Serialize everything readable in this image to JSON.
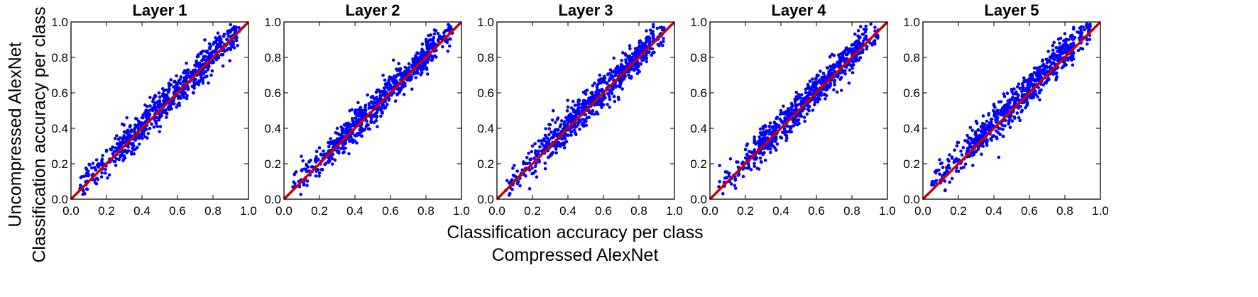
{
  "figure": {
    "ylabel_line1": "Uncompressed AlexNet",
    "ylabel_line2": "Classification accuracy per class",
    "xlabel_line1": "Classification accuracy per class",
    "xlabel_line2": "Compressed AlexNet"
  },
  "chart_data": [
    {
      "type": "scatter",
      "title": "Layer 1",
      "xlim": [
        0.0,
        1.0
      ],
      "ylim": [
        0.0,
        1.0
      ],
      "xticks": [
        "0.0",
        "0.2",
        "0.4",
        "0.6",
        "0.8",
        "1.0"
      ],
      "yticks": [
        "0.0",
        "0.2",
        "0.4",
        "0.6",
        "0.8",
        "1.0"
      ],
      "grid": false,
      "series": [
        {
          "kind": "points",
          "color": "#0000ff",
          "x": [
            0.05,
            0.1,
            0.12,
            0.15,
            0.18,
            0.2,
            0.22,
            0.25,
            0.28,
            0.3,
            0.32,
            0.34,
            0.36,
            0.38,
            0.4,
            0.42,
            0.44,
            0.46,
            0.48,
            0.5,
            0.52,
            0.54,
            0.56,
            0.58,
            0.6,
            0.62,
            0.64,
            0.66,
            0.68,
            0.7,
            0.72,
            0.74,
            0.76,
            0.78,
            0.8,
            0.82,
            0.85,
            0.88,
            0.9,
            0.93
          ],
          "y": [
            0.06,
            0.14,
            0.11,
            0.19,
            0.2,
            0.27,
            0.21,
            0.29,
            0.3,
            0.38,
            0.31,
            0.39,
            0.4,
            0.35,
            0.46,
            0.4,
            0.47,
            0.5,
            0.44,
            0.55,
            0.49,
            0.58,
            0.52,
            0.6,
            0.62,
            0.57,
            0.68,
            0.62,
            0.7,
            0.71,
            0.66,
            0.76,
            0.72,
            0.82,
            0.78,
            0.86,
            0.84,
            0.9,
            0.88,
            0.97
          ]
        },
        {
          "kind": "line",
          "color": "#cc0000",
          "x": [
            0.0,
            1.0
          ],
          "y": [
            0.0,
            1.0
          ]
        }
      ]
    },
    {
      "type": "scatter",
      "title": "Layer 2",
      "xlim": [
        0.0,
        1.0
      ],
      "ylim": [
        0.0,
        1.0
      ],
      "xticks": [
        "0.0",
        "0.2",
        "0.4",
        "0.6",
        "0.8",
        "1.0"
      ],
      "yticks": [
        "0.0",
        "0.2",
        "0.4",
        "0.6",
        "0.8",
        "1.0"
      ],
      "grid": false,
      "series": [
        {
          "kind": "points",
          "color": "#0000ff",
          "x": [
            0.05,
            0.1,
            0.12,
            0.15,
            0.18,
            0.2,
            0.22,
            0.25,
            0.28,
            0.3,
            0.32,
            0.34,
            0.36,
            0.38,
            0.4,
            0.42,
            0.44,
            0.46,
            0.48,
            0.5,
            0.52,
            0.54,
            0.56,
            0.58,
            0.6,
            0.62,
            0.64,
            0.66,
            0.68,
            0.7,
            0.72,
            0.74,
            0.76,
            0.78,
            0.8,
            0.82,
            0.85,
            0.88,
            0.9,
            0.93
          ],
          "y": [
            0.07,
            0.16,
            0.12,
            0.22,
            0.21,
            0.29,
            0.23,
            0.32,
            0.31,
            0.4,
            0.34,
            0.42,
            0.41,
            0.38,
            0.49,
            0.43,
            0.5,
            0.53,
            0.47,
            0.58,
            0.52,
            0.61,
            0.55,
            0.63,
            0.64,
            0.6,
            0.7,
            0.65,
            0.72,
            0.73,
            0.69,
            0.78,
            0.75,
            0.83,
            0.8,
            0.87,
            0.85,
            0.91,
            0.9,
            0.97
          ]
        },
        {
          "kind": "line",
          "color": "#cc0000",
          "x": [
            0.0,
            1.0
          ],
          "y": [
            0.0,
            1.0
          ]
        }
      ]
    },
    {
      "type": "scatter",
      "title": "Layer 3",
      "xlim": [
        0.0,
        1.0
      ],
      "ylim": [
        0.0,
        1.0
      ],
      "xticks": [
        "0.0",
        "0.2",
        "0.4",
        "0.6",
        "0.8",
        "1.0"
      ],
      "yticks": [
        "0.0",
        "0.2",
        "0.4",
        "0.6",
        "0.8",
        "1.0"
      ],
      "grid": false,
      "series": [
        {
          "kind": "points",
          "color": "#0000ff",
          "x": [
            0.05,
            0.1,
            0.12,
            0.15,
            0.18,
            0.2,
            0.22,
            0.25,
            0.28,
            0.3,
            0.32,
            0.34,
            0.36,
            0.38,
            0.4,
            0.42,
            0.44,
            0.46,
            0.48,
            0.5,
            0.52,
            0.54,
            0.56,
            0.58,
            0.6,
            0.62,
            0.64,
            0.66,
            0.68,
            0.7,
            0.72,
            0.74,
            0.76,
            0.78,
            0.8,
            0.82,
            0.85,
            0.88,
            0.9,
            0.93
          ],
          "y": [
            0.05,
            0.13,
            0.1,
            0.2,
            0.17,
            0.3,
            0.2,
            0.33,
            0.3,
            0.42,
            0.35,
            0.45,
            0.42,
            0.4,
            0.52,
            0.45,
            0.53,
            0.56,
            0.5,
            0.61,
            0.54,
            0.64,
            0.57,
            0.66,
            0.67,
            0.62,
            0.73,
            0.67,
            0.75,
            0.76,
            0.71,
            0.8,
            0.77,
            0.85,
            0.82,
            0.88,
            0.86,
            0.92,
            0.9,
            0.97
          ]
        },
        {
          "kind": "line",
          "color": "#cc0000",
          "x": [
            0.0,
            1.0
          ],
          "y": [
            0.0,
            1.0
          ]
        }
      ]
    },
    {
      "type": "scatter",
      "title": "Layer 4",
      "xlim": [
        0.0,
        1.0
      ],
      "ylim": [
        0.0,
        1.0
      ],
      "xticks": [
        "0.0",
        "0.2",
        "0.4",
        "0.6",
        "0.8",
        "1.0"
      ],
      "yticks": [
        "0.0",
        "0.2",
        "0.4",
        "0.6",
        "0.8",
        "1.0"
      ],
      "grid": false,
      "series": [
        {
          "kind": "points",
          "color": "#0000ff",
          "x": [
            0.05,
            0.1,
            0.12,
            0.15,
            0.18,
            0.2,
            0.22,
            0.25,
            0.28,
            0.3,
            0.32,
            0.34,
            0.36,
            0.38,
            0.4,
            0.42,
            0.44,
            0.46,
            0.48,
            0.5,
            0.52,
            0.54,
            0.56,
            0.58,
            0.6,
            0.62,
            0.64,
            0.66,
            0.68,
            0.7,
            0.72,
            0.74,
            0.76,
            0.78,
            0.8,
            0.82,
            0.85,
            0.88,
            0.9,
            0.93
          ],
          "y": [
            0.07,
            0.15,
            0.12,
            0.21,
            0.2,
            0.28,
            0.22,
            0.32,
            0.3,
            0.41,
            0.33,
            0.43,
            0.41,
            0.38,
            0.5,
            0.43,
            0.51,
            0.54,
            0.47,
            0.59,
            0.52,
            0.62,
            0.55,
            0.64,
            0.65,
            0.6,
            0.71,
            0.65,
            0.73,
            0.74,
            0.69,
            0.79,
            0.75,
            0.84,
            0.8,
            0.88,
            0.85,
            0.92,
            0.9,
            0.97
          ]
        },
        {
          "kind": "line",
          "color": "#cc0000",
          "x": [
            0.0,
            1.0
          ],
          "y": [
            0.0,
            1.0
          ]
        }
      ]
    },
    {
      "type": "scatter",
      "title": "Layer 5",
      "xlim": [
        0.0,
        1.0
      ],
      "ylim": [
        0.0,
        1.0
      ],
      "xticks": [
        "0.0",
        "0.2",
        "0.4",
        "0.6",
        "0.8",
        "1.0"
      ],
      "yticks": [
        "0.0",
        "0.2",
        "0.4",
        "0.6",
        "0.8",
        "1.0"
      ],
      "grid": false,
      "series": [
        {
          "kind": "points",
          "color": "#0000ff",
          "x": [
            0.05,
            0.1,
            0.12,
            0.15,
            0.18,
            0.2,
            0.22,
            0.25,
            0.28,
            0.3,
            0.32,
            0.34,
            0.36,
            0.38,
            0.4,
            0.42,
            0.44,
            0.46,
            0.48,
            0.5,
            0.52,
            0.54,
            0.56,
            0.58,
            0.6,
            0.62,
            0.64,
            0.66,
            0.68,
            0.7,
            0.72,
            0.74,
            0.76,
            0.78,
            0.8,
            0.82,
            0.85,
            0.88,
            0.9,
            0.93
          ],
          "y": [
            0.08,
            0.2,
            0.14,
            0.25,
            0.22,
            0.32,
            0.25,
            0.36,
            0.33,
            0.44,
            0.36,
            0.47,
            0.44,
            0.41,
            0.53,
            0.46,
            0.55,
            0.58,
            0.51,
            0.62,
            0.56,
            0.65,
            0.59,
            0.67,
            0.68,
            0.64,
            0.74,
            0.68,
            0.76,
            0.77,
            0.72,
            0.82,
            0.78,
            0.86,
            0.83,
            0.9,
            0.87,
            0.94,
            0.91,
            0.98
          ]
        },
        {
          "kind": "line",
          "color": "#cc0000",
          "x": [
            0.0,
            1.0
          ],
          "y": [
            0.0,
            1.0
          ]
        }
      ]
    }
  ]
}
